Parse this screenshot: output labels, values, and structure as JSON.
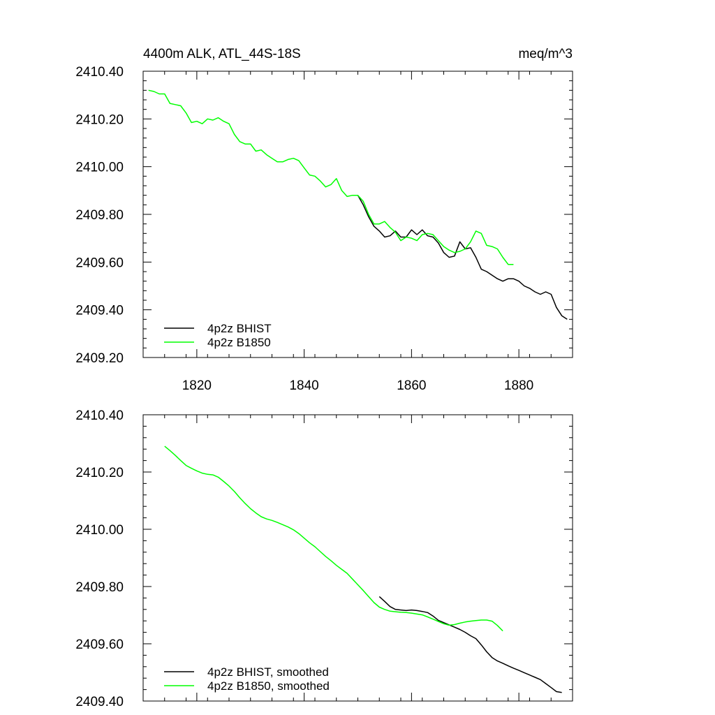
{
  "chart_data": [
    {
      "type": "line",
      "title_left": "4400m ALK, ATL_44S-18S",
      "title_right": "meq/m^3",
      "xlim": [
        1810,
        1890
      ],
      "ylim": [
        2409.2,
        2410.4
      ],
      "x_ticks": [
        1820,
        1840,
        1860,
        1880
      ],
      "x_tick_labels": [
        "1820",
        "1840",
        "1860",
        "1880"
      ],
      "y_ticks": [
        2409.2,
        2409.4,
        2409.6,
        2409.8,
        2410.0,
        2410.2,
        2410.4
      ],
      "y_tick_labels": [
        "2409.20",
        "2409.40",
        "2409.60",
        "2409.80",
        "2410.00",
        "2410.20",
        "2410.40"
      ],
      "legend_position": "bottom-left",
      "series": [
        {
          "name": "4p2z BHIST",
          "color": "#000000",
          "x": [
            1850,
            1851,
            1852,
            1853,
            1854,
            1855,
            1856,
            1857,
            1858,
            1859,
            1860,
            1861,
            1862,
            1863,
            1864,
            1865,
            1866,
            1867,
            1868,
            1869,
            1870,
            1871,
            1872,
            1873,
            1874,
            1875,
            1876,
            1877,
            1878,
            1879,
            1880,
            1881,
            1882,
            1883,
            1884,
            1885,
            1886,
            1887,
            1888,
            1889
          ],
          "y": [
            2409.88,
            2409.84,
            2409.79,
            2409.75,
            2409.73,
            2409.705,
            2409.71,
            2409.73,
            2409.705,
            2409.705,
            2409.735,
            2409.715,
            2409.735,
            2409.71,
            2409.705,
            2409.68,
            2409.64,
            2409.62,
            2409.625,
            2409.685,
            2409.655,
            2409.66,
            2409.62,
            2409.57,
            2409.56,
            2409.545,
            2409.53,
            2409.52,
            2409.53,
            2409.53,
            2409.52,
            2409.5,
            2409.49,
            2409.475,
            2409.465,
            2409.475,
            2409.465,
            2409.41,
            2409.375,
            2409.36
          ]
        },
        {
          "name": "4p2z B1850",
          "color": "#00ff00",
          "x": [
            1811,
            1812,
            1813,
            1814,
            1815,
            1816,
            1817,
            1818,
            1819,
            1820,
            1821,
            1822,
            1823,
            1824,
            1825,
            1826,
            1827,
            1828,
            1829,
            1830,
            1831,
            1832,
            1833,
            1834,
            1835,
            1836,
            1837,
            1838,
            1839,
            1840,
            1841,
            1842,
            1843,
            1844,
            1845,
            1846,
            1847,
            1848,
            1849,
            1850,
            1851,
            1852,
            1853,
            1854,
            1855,
            1856,
            1857,
            1858,
            1859,
            1860,
            1861,
            1862,
            1863,
            1864,
            1865,
            1866,
            1867,
            1868,
            1869,
            1870,
            1871,
            1872,
            1873,
            1874,
            1875,
            1876,
            1877,
            1878,
            1879
          ],
          "y": [
            2410.32,
            2410.315,
            2410.305,
            2410.305,
            2410.265,
            2410.26,
            2410.255,
            2410.225,
            2410.185,
            2410.19,
            2410.18,
            2410.2,
            2410.195,
            2410.205,
            2410.19,
            2410.18,
            2410.135,
            2410.105,
            2410.095,
            2410.095,
            2410.065,
            2410.07,
            2410.05,
            2410.035,
            2410.02,
            2410.02,
            2410.03,
            2410.035,
            2410.025,
            2409.995,
            2409.965,
            2409.96,
            2409.94,
            2409.915,
            2409.925,
            2409.95,
            2409.9,
            2409.875,
            2409.88,
            2409.88,
            2409.855,
            2409.8,
            2409.76,
            2409.76,
            2409.77,
            2409.745,
            2409.725,
            2409.69,
            2409.705,
            2409.7,
            2409.69,
            2409.715,
            2409.72,
            2409.715,
            2409.69,
            2409.665,
            2409.65,
            2409.64,
            2409.645,
            2409.655,
            2409.685,
            2409.73,
            2409.72,
            2409.67,
            2409.665,
            2409.655,
            2409.62,
            2409.59,
            2409.59
          ]
        }
      ]
    },
    {
      "type": "line",
      "xlim": [
        1810,
        1890
      ],
      "ylim": [
        2409.4,
        2410.4
      ],
      "x_ticks": [
        1820,
        1840,
        1860,
        1880
      ],
      "y_ticks": [
        2409.4,
        2409.6,
        2409.8,
        2410.0,
        2410.2,
        2410.4
      ],
      "y_tick_labels": [
        "2409.40",
        "2409.60",
        "2409.80",
        "2410.00",
        "2410.20",
        "2410.40"
      ],
      "legend_position": "bottom-left",
      "series": [
        {
          "name": "4p2z BHIST, smoothed",
          "color": "#000000",
          "x": [
            1854,
            1855,
            1856,
            1857,
            1858,
            1859,
            1860,
            1861,
            1862,
            1863,
            1864,
            1865,
            1866,
            1867,
            1868,
            1869,
            1870,
            1871,
            1872,
            1873,
            1874,
            1875,
            1876,
            1877,
            1878,
            1879,
            1880,
            1881,
            1882,
            1883,
            1884,
            1885,
            1886,
            1887,
            1888
          ],
          "y": [
            2409.765,
            2409.748,
            2409.73,
            2409.72,
            2409.718,
            2409.716,
            2409.718,
            2409.716,
            2409.713,
            2409.709,
            2409.697,
            2409.682,
            2409.674,
            2409.666,
            2409.658,
            2409.65,
            2409.64,
            2409.628,
            2409.618,
            2409.596,
            2409.572,
            2409.552,
            2409.54,
            2409.532,
            2409.523,
            2409.515,
            2409.507,
            2409.499,
            2409.491,
            2409.483,
            2409.475,
            2409.461,
            2409.447,
            2409.433,
            2409.43
          ]
        },
        {
          "name": "4p2z B1850, smoothed",
          "color": "#00ff00",
          "x": [
            1814,
            1815,
            1816,
            1817,
            1818,
            1819,
            1820,
            1821,
            1822,
            1823,
            1824,
            1825,
            1826,
            1827,
            1828,
            1829,
            1830,
            1831,
            1832,
            1833,
            1834,
            1835,
            1836,
            1837,
            1838,
            1839,
            1840,
            1841,
            1842,
            1843,
            1844,
            1845,
            1846,
            1847,
            1848,
            1849,
            1850,
            1851,
            1852,
            1853,
            1854,
            1855,
            1856,
            1857,
            1858,
            1859,
            1860,
            1861,
            1862,
            1863,
            1864,
            1865,
            1866,
            1867,
            1868,
            1869,
            1870,
            1871,
            1872,
            1873,
            1874,
            1875,
            1876,
            1877
          ],
          "y": [
            2410.29,
            2410.275,
            2410.258,
            2410.24,
            2410.223,
            2410.213,
            2410.204,
            2410.196,
            2410.192,
            2410.19,
            2410.182,
            2410.167,
            2410.151,
            2410.132,
            2410.11,
            2410.09,
            2410.072,
            2410.057,
            2410.044,
            2410.036,
            2410.031,
            2410.024,
            2410.016,
            2410.008,
            2409.998,
            2409.985,
            2409.969,
            2409.953,
            2409.939,
            2409.922,
            2409.905,
            2409.89,
            2409.874,
            2409.86,
            2409.846,
            2409.826,
            2409.806,
            2409.786,
            2409.765,
            2409.744,
            2409.728,
            2409.72,
            2409.714,
            2409.712,
            2409.71,
            2409.709,
            2409.707,
            2409.704,
            2409.701,
            2409.694,
            2409.686,
            2409.678,
            2409.67,
            2409.665,
            2409.667,
            2409.672,
            2409.676,
            2409.679,
            2409.681,
            2409.683,
            2409.683,
            2409.679,
            2409.664,
            2409.645
          ]
        }
      ]
    }
  ]
}
